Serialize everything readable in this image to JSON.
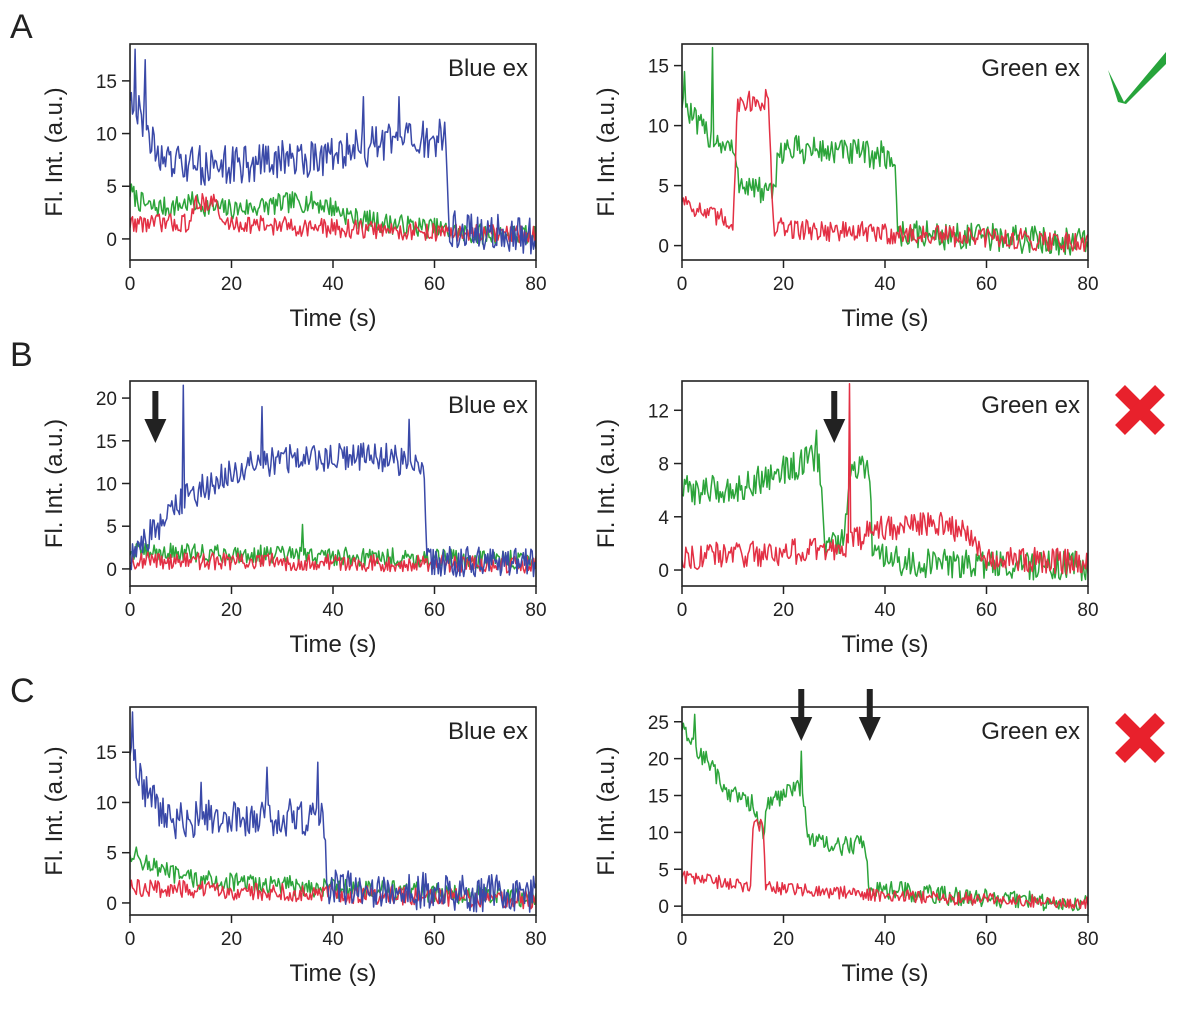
{
  "colors": {
    "blue": "#3a49a8",
    "green": "#2ca43a",
    "red": "#e33044",
    "arrow": "#222222",
    "check": "#27a43b",
    "cross": "#e8212c"
  },
  "rows": [
    {
      "label": "A",
      "verdict": "check"
    },
    {
      "label": "B",
      "verdict": "cross"
    },
    {
      "label": "C",
      "verdict": "cross"
    }
  ],
  "chart_data": [
    {
      "panel": "A-left",
      "type": "line",
      "title": "Blue ex",
      "xlabel": "Time (s)",
      "ylabel": "Fl. Int. (a.u.)",
      "xlim": [
        0,
        80
      ],
      "ylim": [
        -2,
        18.5
      ],
      "xticks": [
        "0",
        "20",
        "40",
        "60",
        "80"
      ],
      "xtick_values": [
        0,
        20,
        40,
        60,
        80
      ],
      "yticks": [
        "0",
        "5",
        "10",
        "15"
      ],
      "ytick_values": [
        0,
        5,
        10,
        15
      ],
      "arrows": [],
      "series": [
        {
          "name": "green",
          "color": "#2ca43a",
          "points": [
            [
              0,
              4.5
            ],
            [
              2,
              3.5
            ],
            [
              4,
              3
            ],
            [
              8,
              3
            ],
            [
              12,
              3.5
            ],
            [
              16,
              3
            ],
            [
              20,
              2.8
            ],
            [
              24,
              3
            ],
            [
              28,
              3.2
            ],
            [
              32,
              3.5
            ],
            [
              36,
              3.5
            ],
            [
              40,
              3
            ],
            [
              44,
              2
            ],
            [
              50,
              1.5
            ],
            [
              60,
              1
            ],
            [
              65,
              0.5
            ],
            [
              80,
              0.3
            ]
          ],
          "noise": 1.0,
          "spikes": []
        },
        {
          "name": "red",
          "color": "#e33044",
          "points": [
            [
              0,
              1.5
            ],
            [
              12,
              1.5
            ],
            [
              13,
              3.5
            ],
            [
              17,
              3.5
            ],
            [
              18,
              1.5
            ],
            [
              40,
              1
            ],
            [
              80,
              0.3
            ]
          ],
          "noise": 0.9,
          "spikes": []
        },
        {
          "name": "blue",
          "color": "#3a49a8",
          "points": [
            [
              0,
              14
            ],
            [
              2,
              12
            ],
            [
              4,
              9
            ],
            [
              8,
              7
            ],
            [
              20,
              7
            ],
            [
              30,
              7.5
            ],
            [
              40,
              8
            ],
            [
              50,
              9
            ],
            [
              62,
              9.5
            ],
            [
              63,
              1
            ],
            [
              80,
              0
            ]
          ],
          "noise": 1.9,
          "spikes": [
            [
              1,
              18
            ],
            [
              3,
              17
            ],
            [
              46,
              13.5
            ],
            [
              53,
              13.5
            ]
          ]
        }
      ]
    },
    {
      "panel": "A-right",
      "type": "line",
      "title": "Green ex",
      "xlabel": "Time (s)",
      "ylabel": "Fl. Int. (a.u.)",
      "xlim": [
        0,
        80
      ],
      "ylim": [
        -1.2,
        16.8
      ],
      "xticks": [
        "0",
        "20",
        "40",
        "60",
        "80"
      ],
      "xtick_values": [
        0,
        20,
        40,
        60,
        80
      ],
      "yticks": [
        "0",
        "5",
        "10",
        "15"
      ],
      "ytick_values": [
        0,
        5,
        10,
        15
      ],
      "arrows": [],
      "series": [
        {
          "name": "green",
          "color": "#2ca43a",
          "points": [
            [
              0,
              12
            ],
            [
              3,
              10
            ],
            [
              6,
              9
            ],
            [
              10,
              8
            ],
            [
              11,
              5.5
            ],
            [
              18,
              4
            ],
            [
              19,
              8
            ],
            [
              25,
              8
            ],
            [
              40,
              7.5
            ],
            [
              42,
              7
            ],
            [
              42.5,
              1
            ],
            [
              80,
              0.3
            ]
          ],
          "noise": 1.2,
          "spikes": [
            [
              0.5,
              14.5
            ],
            [
              6,
              16.5
            ]
          ]
        },
        {
          "name": "red",
          "color": "#e33044",
          "points": [
            [
              0,
              4
            ],
            [
              5,
              2.5
            ],
            [
              10,
              2
            ],
            [
              11,
              12
            ],
            [
              17,
              12
            ],
            [
              18,
              1.5
            ],
            [
              40,
              1
            ],
            [
              80,
              0.3
            ]
          ],
          "noise": 0.9,
          "spikes": [
            [
              16.5,
              13
            ]
          ]
        }
      ]
    },
    {
      "panel": "B-left",
      "type": "line",
      "title": "Blue ex",
      "xlabel": "Time (s)",
      "ylabel": "Fl. Int. (a.u.)",
      "xlim": [
        0,
        80
      ],
      "ylim": [
        -2,
        22
      ],
      "xticks": [
        "0",
        "20",
        "40",
        "60",
        "80"
      ],
      "xtick_values": [
        0,
        20,
        40,
        60,
        80
      ],
      "yticks": [
        "0",
        "5",
        "10",
        "15",
        "20"
      ],
      "ytick_values": [
        0,
        5,
        10,
        15,
        20
      ],
      "arrows": [
        5
      ],
      "series": [
        {
          "name": "green",
          "color": "#2ca43a",
          "points": [
            [
              0,
              2
            ],
            [
              80,
              1
            ]
          ],
          "noise": 1.1,
          "spikes": [
            [
              34,
              5.2
            ]
          ]
        },
        {
          "name": "red",
          "color": "#e33044",
          "points": [
            [
              0,
              1
            ],
            [
              80,
              0.5
            ]
          ],
          "noise": 1.0,
          "spikes": []
        },
        {
          "name": "blue",
          "color": "#3a49a8",
          "points": [
            [
              0,
              1
            ],
            [
              2,
              3
            ],
            [
              6,
              5
            ],
            [
              10,
              8
            ],
            [
              16,
              10
            ],
            [
              24,
              12
            ],
            [
              30,
              13
            ],
            [
              40,
              13
            ],
            [
              50,
              13
            ],
            [
              58,
              12
            ],
            [
              58.5,
              1
            ],
            [
              80,
              0.5
            ]
          ],
          "noise": 1.8,
          "spikes": [
            [
              10.5,
              21.5
            ],
            [
              26,
              19
            ],
            [
              55,
              17.5
            ]
          ]
        }
      ]
    },
    {
      "panel": "B-right",
      "type": "line",
      "title": "Green ex",
      "xlabel": "Time (s)",
      "ylabel": "Fl. Int. (a.u.)",
      "xlim": [
        0,
        80
      ],
      "ylim": [
        -1.2,
        14.2
      ],
      "xticks": [
        "0",
        "20",
        "40",
        "60",
        "80"
      ],
      "xtick_values": [
        0,
        20,
        40,
        60,
        80
      ],
      "yticks": [
        "0",
        "4",
        "8",
        "12"
      ],
      "ytick_values": [
        0,
        4,
        8,
        12
      ],
      "arrows": [
        30
      ],
      "series": [
        {
          "name": "green",
          "color": "#2ca43a",
          "points": [
            [
              0,
              6
            ],
            [
              10,
              6
            ],
            [
              20,
              7.5
            ],
            [
              27,
              8.5
            ],
            [
              28,
              2
            ],
            [
              32,
              2
            ],
            [
              33,
              7.5
            ],
            [
              37,
              7.5
            ],
            [
              37.5,
              1
            ],
            [
              45,
              0.5
            ],
            [
              80,
              0.3
            ]
          ],
          "noise": 1.1,
          "spikes": [
            [
              26.5,
              10.5
            ]
          ]
        },
        {
          "name": "red",
          "color": "#e33044",
          "points": [
            [
              0,
              1
            ],
            [
              30,
              1.5
            ],
            [
              32,
              2
            ],
            [
              33,
              2
            ],
            [
              38,
              3
            ],
            [
              48,
              3.5
            ],
            [
              56,
              3
            ],
            [
              60,
              1
            ],
            [
              80,
              0.5
            ]
          ],
          "noise": 1.0,
          "spikes": [
            [
              33,
              14
            ]
          ]
        }
      ]
    },
    {
      "panel": "C-left",
      "type": "line",
      "title": "Blue ex",
      "xlabel": "Time (s)",
      "ylabel": "Fl. Int. (a.u.)",
      "xlim": [
        0,
        80
      ],
      "ylim": [
        -1.2,
        19.5
      ],
      "xticks": [
        "0",
        "20",
        "40",
        "60",
        "80"
      ],
      "xtick_values": [
        0,
        20,
        40,
        60,
        80
      ],
      "yticks": [
        "0",
        "5",
        "10",
        "15"
      ],
      "ytick_values": [
        0,
        5,
        10,
        15
      ],
      "arrows": [],
      "series": [
        {
          "name": "green",
          "color": "#2ca43a",
          "points": [
            [
              0,
              5
            ],
            [
              5,
              3.5
            ],
            [
              10,
              2.5
            ],
            [
              20,
              2
            ],
            [
              40,
              1.5
            ],
            [
              80,
              0.5
            ]
          ],
          "noise": 1.0,
          "spikes": []
        },
        {
          "name": "red",
          "color": "#e33044",
          "points": [
            [
              0,
              1.5
            ],
            [
              80,
              0.3
            ]
          ],
          "noise": 0.9,
          "spikes": []
        },
        {
          "name": "blue",
          "color": "#3a49a8",
          "points": [
            [
              0,
              15
            ],
            [
              2,
              12
            ],
            [
              5,
              10
            ],
            [
              8,
              8
            ],
            [
              15,
              8.5
            ],
            [
              25,
              8.5
            ],
            [
              38,
              8.5
            ],
            [
              39,
              1.5
            ],
            [
              80,
              0.8
            ]
          ],
          "noise": 1.9,
          "spikes": [
            [
              0.5,
              19
            ],
            [
              14,
              12
            ],
            [
              27,
              13.5
            ],
            [
              37,
              14
            ]
          ]
        }
      ]
    },
    {
      "panel": "C-right",
      "type": "line",
      "title": "Green ex",
      "xlabel": "Time (s)",
      "ylabel": "Fl. Int. (a.u.)",
      "xlim": [
        0,
        80
      ],
      "ylim": [
        -1.2,
        27
      ],
      "xticks": [
        "0",
        "20",
        "40",
        "60",
        "80"
      ],
      "xtick_values": [
        0,
        20,
        40,
        60,
        80
      ],
      "yticks": [
        "0",
        "5",
        "10",
        "15",
        "20",
        "25"
      ],
      "ytick_values": [
        0,
        5,
        10,
        15,
        20,
        25
      ],
      "arrows": [
        23.5,
        37
      ],
      "series": [
        {
          "name": "green",
          "color": "#2ca43a",
          "points": [
            [
              0,
              24
            ],
            [
              3,
              21
            ],
            [
              6,
              19
            ],
            [
              8,
              16
            ],
            [
              12,
              14.5
            ],
            [
              14,
              14
            ],
            [
              15,
              11
            ],
            [
              16,
              10
            ],
            [
              17,
              14
            ],
            [
              20,
              15
            ],
            [
              23,
              17
            ],
            [
              24,
              14
            ],
            [
              25,
              9
            ],
            [
              30,
              8
            ],
            [
              36,
              8.5
            ],
            [
              37,
              2.5
            ],
            [
              50,
              1.5
            ],
            [
              80,
              0.3
            ]
          ],
          "noise": 1.3,
          "spikes": [
            [
              2.5,
              26
            ],
            [
              23.5,
              21
            ]
          ]
        },
        {
          "name": "red",
          "color": "#e33044",
          "points": [
            [
              0,
              4
            ],
            [
              10,
              3
            ],
            [
              13.5,
              2.5
            ],
            [
              14,
              11
            ],
            [
              16,
              11
            ],
            [
              16.5,
              2.5
            ],
            [
              40,
              1.5
            ],
            [
              80,
              0.3
            ]
          ],
          "noise": 0.9,
          "spikes": []
        }
      ]
    }
  ]
}
